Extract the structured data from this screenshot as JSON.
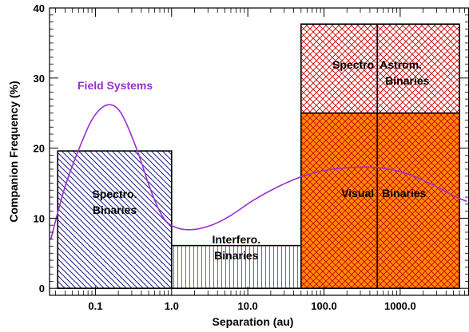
{
  "chart_data": {
    "type": "bar",
    "xlabel": "Separation (au)",
    "ylabel": "Companion Frequency (%)",
    "x_scale": "log",
    "xlim": [
      0.025,
      8000
    ],
    "ylim": [
      -1,
      40
    ],
    "x_tick_labels": [
      {
        "value": 0.1,
        "label": "0.1"
      },
      {
        "value": 1,
        "label": "1.0"
      },
      {
        "value": 10,
        "label": "10.0"
      },
      {
        "value": 100,
        "label": "100.0"
      },
      {
        "value": 1000,
        "label": "1000.0"
      }
    ],
    "y_ticks": [
      0,
      10,
      20,
      30,
      40
    ],
    "bars": [
      {
        "x0": 0.032,
        "x1": 1.0,
        "y0": 0,
        "y1": 19.6,
        "label": [
          "Spectro.",
          "Binaries"
        ],
        "hatch": "diag-down",
        "color": "#1c1c8c"
      },
      {
        "x0": 1.0,
        "x1": 50,
        "y0": 0,
        "y1": 6.1,
        "label": [
          "Interfero.",
          "Binaries"
        ],
        "hatch": "vertical",
        "color": "#18b018"
      },
      {
        "x0": 50,
        "x1": 6000,
        "y0": 0,
        "y1": 25.0,
        "label": [
          "Visual",
          "Binaries"
        ],
        "hatch": "cross",
        "color": "#cc0000",
        "fill": "#ff8c00"
      },
      {
        "x0": 50,
        "x1": 6000,
        "y0": 25.0,
        "y1": 37.7,
        "label": [
          "Spectro",
          "Astrom.",
          "Binaries"
        ],
        "hatch": "cross",
        "color": "#cc0000"
      }
    ],
    "divider_x": 500,
    "curve": {
      "name": "Field Systems",
      "color": "#9a30d0",
      "points": [
        [
          0.026,
          7
        ],
        [
          0.04,
          14.5
        ],
        [
          0.07,
          21.5
        ],
        [
          0.1,
          24.8
        ],
        [
          0.15,
          26.2
        ],
        [
          0.22,
          24.9
        ],
        [
          0.35,
          19.8
        ],
        [
          0.55,
          13.6
        ],
        [
          0.8,
          9.9
        ],
        [
          1.2,
          8.6
        ],
        [
          2.0,
          8.4
        ],
        [
          3.5,
          9.1
        ],
        [
          6,
          10.4
        ],
        [
          12,
          12.6
        ],
        [
          25,
          14.5
        ],
        [
          50,
          15.9
        ],
        [
          100,
          16.8
        ],
        [
          200,
          17.2
        ],
        [
          400,
          17.3
        ],
        [
          800,
          16.9
        ],
        [
          1500,
          16.0
        ],
        [
          3000,
          14.5
        ],
        [
          5000,
          13.2
        ],
        [
          7500,
          12.4
        ]
      ]
    }
  }
}
